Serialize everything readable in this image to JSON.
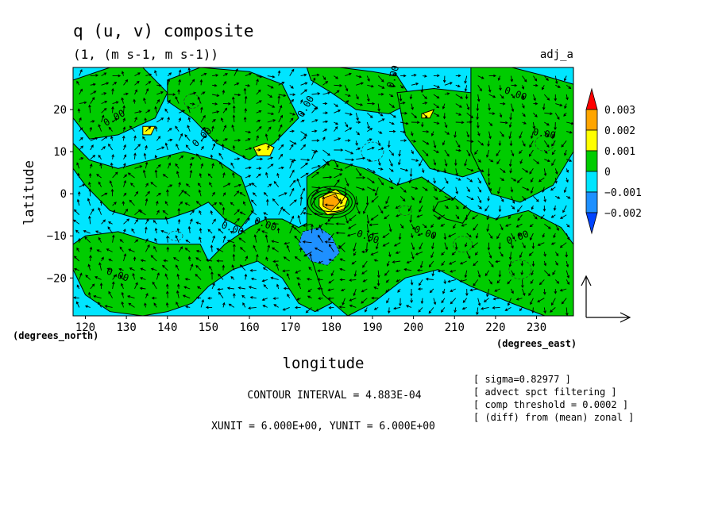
{
  "chart_data": {
    "type": "heatmap",
    "title": "q (u, v) composite",
    "subtitle": "(1, (m s-1, m s-1))",
    "corner_label": "adj_a",
    "xlabel": "longitude",
    "ylabel": "latitude",
    "x_units": "(degrees_east)",
    "y_units": "(degrees_north)",
    "xlim": [
      117,
      239
    ],
    "ylim": [
      -29,
      30
    ],
    "x_ticks": [
      120,
      130,
      140,
      150,
      160,
      170,
      180,
      190,
      200,
      210,
      220,
      230
    ],
    "y_ticks": [
      -20,
      -10,
      0,
      10,
      20
    ],
    "x_tick_labels": [
      "120",
      "130",
      "140",
      "150",
      "160",
      "170",
      "180",
      "190",
      "200",
      "210",
      "220",
      "230"
    ],
    "y_tick_labels": [
      "−20",
      "−10",
      "0",
      "10",
      "20"
    ],
    "colorbar": {
      "levels": [
        "0.003",
        "0.002",
        "0.001",
        "0",
        "−0.001",
        "−0.002"
      ],
      "colors": [
        "#ff0000",
        "#ffa500",
        "#ffff00",
        "#00cc00",
        "#00e5ff",
        "#1e90ff",
        "#0044ff"
      ]
    },
    "contour_labels": [
      "0.00",
      "0.00",
      "0.00",
      "0.00",
      "0.00",
      "0.00",
      "0.00",
      "0.00",
      "0.00",
      "0.00",
      "0.00",
      "0.00"
    ],
    "contour_interval_text": "CONTOUR INTERVAL = 4.883E-04",
    "unit_text": "XUNIT = 6.000E+00, YUNIT = 6.000E+00",
    "notes": [
      "[ sigma=0.82977 ]",
      "[ advect spct filtering ]",
      "[ comp threshold = 0.0002 ]",
      "[ (diff) from (mean) zonal ]"
    ],
    "field_colors": {
      "positive": "#00cc00",
      "negative": "#00e5ff",
      "high_positive": "#ffff00",
      "peak": "#ffa500",
      "low_negative": "#1e90ff"
    },
    "positive_regions": [
      {
        "lon": [
          117,
          126,
          134,
          140,
          137,
          128,
          121,
          117
        ],
        "lat": [
          27,
          30,
          30,
          24,
          18,
          14,
          13,
          18
        ]
      },
      {
        "lon": [
          140,
          148,
          160,
          168,
          172,
          166,
          160,
          152,
          146,
          140
        ],
        "lat": [
          27,
          30,
          29,
          26,
          18,
          12,
          8,
          12,
          18,
          22
        ]
      },
      {
        "lon": [
          174,
          182,
          190,
          196,
          200,
          194,
          186,
          180,
          175
        ],
        "lat": [
          30,
          30,
          29,
          28,
          22,
          19,
          20,
          24,
          27
        ]
      },
      {
        "lon": [
          196,
          205,
          214,
          220,
          222,
          218,
          212,
          204,
          198
        ],
        "lat": [
          24,
          25,
          24,
          18,
          10,
          6,
          4,
          6,
          14
        ]
      },
      {
        "lon": [
          214,
          224,
          232,
          239,
          239,
          234,
          226,
          219,
          214
        ],
        "lat": [
          30,
          30,
          28,
          26,
          10,
          2,
          -2,
          0,
          10
        ]
      },
      {
        "lon": [
          117,
          121,
          128,
          136,
          144,
          152,
          158,
          161,
          158,
          154,
          150,
          146,
          140,
          133,
          126,
          120,
          117
        ],
        "lat": [
          12,
          8,
          6,
          8,
          10,
          8,
          4,
          -4,
          -8,
          -6,
          -2,
          -4,
          -6,
          -6,
          -4,
          2,
          6
        ]
      },
      {
        "lon": [
          117,
          120,
          128,
          138,
          148,
          150,
          154,
          160,
          164,
          168,
          172,
          176,
          182,
          188,
          190,
          186,
          180,
          176,
          172,
          168,
          162,
          156,
          150,
          146,
          140,
          134,
          126,
          120,
          117
        ],
        "lat": [
          -12,
          -10,
          -9,
          -12,
          -12,
          -16,
          -12,
          -8,
          -6,
          -6,
          -8,
          -6,
          -8,
          -10,
          -16,
          -22,
          -26,
          -28,
          -26,
          -20,
          -16,
          -18,
          -22,
          -26,
          -28,
          -29,
          -28,
          -24,
          -18
        ]
      },
      {
        "lon": [
          174,
          180,
          188,
          196,
          202,
          208,
          214,
          220,
          228,
          236,
          239,
          239,
          232,
          224,
          214,
          206,
          198,
          190,
          184,
          178,
          174
        ],
        "lat": [
          4,
          8,
          6,
          2,
          4,
          0,
          -4,
          -6,
          -4,
          -8,
          -12,
          -29,
          -29,
          -26,
          -22,
          -18,
          -20,
          -26,
          -29,
          -24,
          -12
        ]
      },
      {
        "lon": [
          206,
          210,
          214,
          212,
          208,
          205
        ],
        "lat": [
          -2,
          -1,
          -4,
          -7,
          -6,
          -4
        ]
      }
    ],
    "high_positive_regions": [
      {
        "lon": [
          161,
          164,
          166,
          165,
          162
        ],
        "lat": [
          11,
          12,
          11,
          9,
          9
        ]
      },
      {
        "lon": [
          177,
          181,
          184,
          183,
          179,
          177
        ],
        "lat": [
          -1,
          1,
          -1,
          -4,
          -5,
          -3
        ]
      },
      {
        "lon": [
          134,
          137,
          136,
          134
        ],
        "lat": [
          16,
          16,
          14,
          14
        ]
      },
      {
        "lon": [
          202,
          205,
          204,
          202
        ],
        "lat": [
          19,
          20,
          18,
          18
        ]
      }
    ],
    "peak_region": [
      {
        "lon": [
          178,
          181,
          182,
          180,
          178
        ],
        "lat": [
          -1,
          0,
          -2,
          -4,
          -3
        ]
      }
    ],
    "low_negative_region": [
      {
        "lon": [
          173,
          177,
          180,
          182,
          179,
          175,
          172
        ],
        "lat": [
          -9,
          -8,
          -10,
          -14,
          -17,
          -16,
          -12
        ]
      }
    ]
  }
}
